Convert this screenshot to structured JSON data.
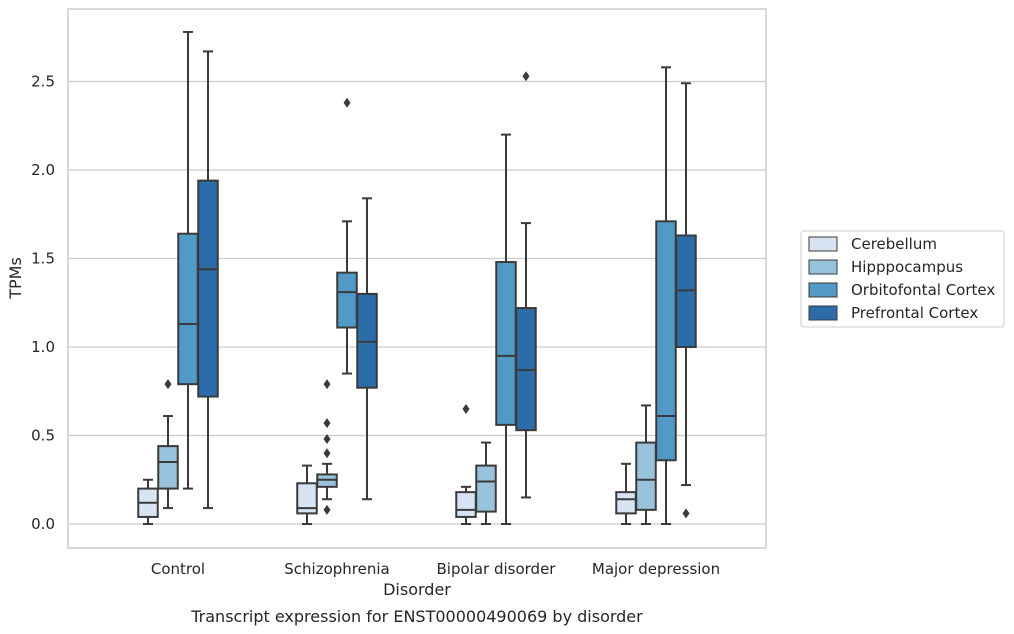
{
  "chart_data": {
    "type": "box",
    "caption": "Transcript expression for ENST00000490069 by disorder",
    "xlabel": "Disorder",
    "ylabel": "TPMs",
    "ylim": [
      -0.13,
      2.9
    ],
    "yticks": [
      "0.0",
      "0.5",
      "1.0",
      "1.5",
      "2.0",
      "2.5"
    ],
    "ytick_values": [
      0,
      0.5,
      1.0,
      1.5,
      2.0,
      2.5
    ],
    "grid": "horizontal",
    "legend_position": "right",
    "categories": [
      "Control",
      "Schizophrenia",
      "Bipolar disorder",
      "Major depression"
    ],
    "series": [
      {
        "name": "Cerebellum",
        "color": "#d6e4f3",
        "boxes": [
          {
            "whislo": 0.0,
            "q1": 0.04,
            "med": 0.12,
            "q3": 0.2,
            "whishi": 0.25,
            "fliers": []
          },
          {
            "whislo": 0.0,
            "q1": 0.06,
            "med": 0.09,
            "q3": 0.23,
            "whishi": 0.33,
            "fliers": []
          },
          {
            "whislo": 0.0,
            "q1": 0.04,
            "med": 0.08,
            "q3": 0.18,
            "whishi": 0.21,
            "fliers": [
              0.65
            ]
          },
          {
            "whislo": 0.0,
            "q1": 0.06,
            "med": 0.14,
            "q3": 0.18,
            "whishi": 0.34,
            "fliers": []
          }
        ]
      },
      {
        "name": "Hipppocampus",
        "color": "#99c3dd",
        "boxes": [
          {
            "whislo": 0.09,
            "q1": 0.2,
            "med": 0.35,
            "q3": 0.44,
            "whishi": 0.61,
            "fliers": [
              0.79
            ]
          },
          {
            "whislo": 0.14,
            "q1": 0.21,
            "med": 0.25,
            "q3": 0.28,
            "whishi": 0.34,
            "fliers": [
              0.08,
              0.4,
              0.48,
              0.57,
              0.79
            ]
          },
          {
            "whislo": 0.0,
            "q1": 0.07,
            "med": 0.24,
            "q3": 0.33,
            "whishi": 0.46,
            "fliers": []
          },
          {
            "whislo": 0.0,
            "q1": 0.08,
            "med": 0.25,
            "q3": 0.46,
            "whishi": 0.67,
            "fliers": []
          }
        ]
      },
      {
        "name": "Orbitofontal Cortex",
        "color": "#5199c6",
        "boxes": [
          {
            "whislo": 0.2,
            "q1": 0.79,
            "med": 1.13,
            "q3": 1.64,
            "whishi": 2.78,
            "fliers": []
          },
          {
            "whislo": 0.85,
            "q1": 1.11,
            "med": 1.31,
            "q3": 1.42,
            "whishi": 1.71,
            "fliers": [
              2.38
            ]
          },
          {
            "whislo": 0.0,
            "q1": 0.56,
            "med": 0.95,
            "q3": 1.48,
            "whishi": 2.2,
            "fliers": []
          },
          {
            "whislo": 0.0,
            "q1": 0.36,
            "med": 0.61,
            "q3": 1.71,
            "whishi": 2.58,
            "fliers": []
          }
        ]
      },
      {
        "name": "Prefrontal Cortex",
        "color": "#2b6ca9",
        "boxes": [
          {
            "whislo": 0.09,
            "q1": 0.72,
            "med": 1.44,
            "q3": 1.94,
            "whishi": 2.67,
            "fliers": []
          },
          {
            "whislo": 0.14,
            "q1": 0.77,
            "med": 1.03,
            "q3": 1.3,
            "whishi": 1.84,
            "fliers": []
          },
          {
            "whislo": 0.15,
            "q1": 0.53,
            "med": 0.87,
            "q3": 1.22,
            "whishi": 1.7,
            "fliers": [
              2.53
            ]
          },
          {
            "whislo": 0.22,
            "q1": 1.0,
            "med": 1.32,
            "q3": 1.63,
            "whishi": 2.49,
            "fliers": [
              0.06
            ]
          }
        ]
      }
    ]
  }
}
